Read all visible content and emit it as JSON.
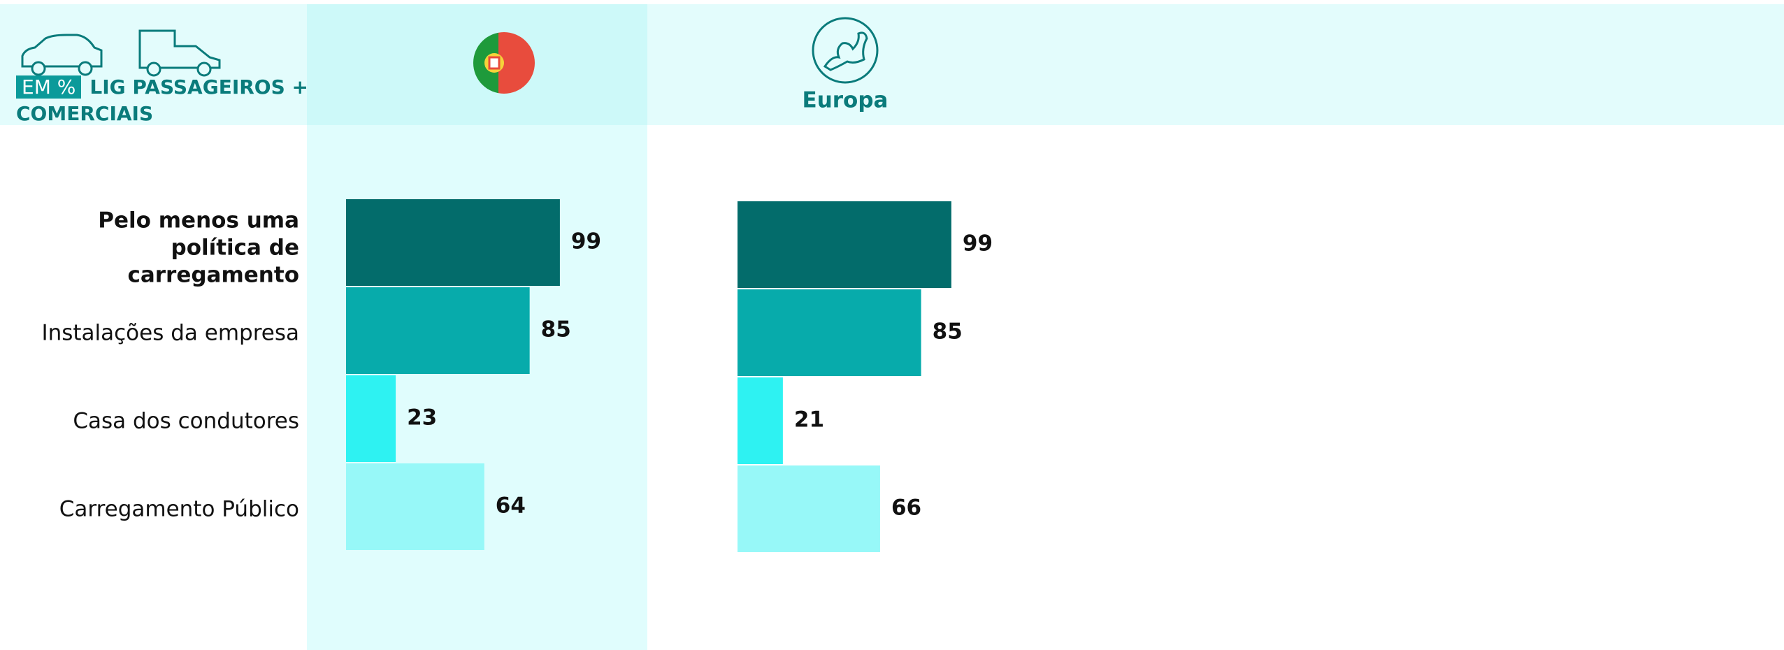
{
  "chart_data": {
    "type": "bar",
    "orientation": "horizontal",
    "unit_label": "EM %",
    "subtitle": "LIG PASSAGEIROS + COMERCIAIS",
    "categories": [
      "Pelo menos uma política de carregamento",
      "Instalações da empresa",
      "Casa dos condutores",
      "Carregamento Público"
    ],
    "colors": [
      "#036c6b",
      "#07abab",
      "#2ef2f2",
      "#97f8f8"
    ],
    "panels": [
      {
        "values": [
          99,
          85,
          23,
          64
        ]
      },
      {
        "name": "Europa",
        "values": [
          99,
          85,
          21,
          66
        ]
      }
    ]
  }
}
